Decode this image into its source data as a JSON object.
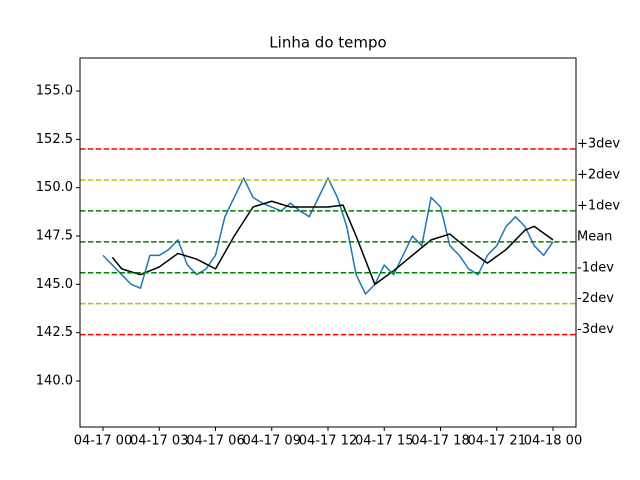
{
  "chart_data": {
    "type": "line",
    "title": "Linha do tempo",
    "xlim": [
      -1.227,
      25.227
    ],
    "xticks": [
      {
        "value": 0,
        "label": "04-17 00"
      },
      {
        "value": 3,
        "label": "04-17 03"
      },
      {
        "value": 6,
        "label": "04-17 06"
      },
      {
        "value": 9,
        "label": "04-17 09"
      },
      {
        "value": 12,
        "label": "04-17 12"
      },
      {
        "value": 15,
        "label": "04-17 15"
      },
      {
        "value": 18,
        "label": "04-17 18"
      },
      {
        "value": 21,
        "label": "04-17 21"
      },
      {
        "value": 24,
        "label": "04-18 00"
      }
    ],
    "ylim": [
      137.62,
      156.71
    ],
    "yticks": [
      {
        "value": 140,
        "label": "140.0"
      },
      {
        "value": 142.5,
        "label": "142.5"
      },
      {
        "value": 145,
        "label": "145.0"
      },
      {
        "value": 147.5,
        "label": "147.5"
      },
      {
        "value": 150,
        "label": "150.0"
      },
      {
        "value": 152.5,
        "label": "152.5"
      },
      {
        "value": 155,
        "label": "155.0"
      }
    ],
    "series": [
      {
        "color": "#1f77b4",
        "x": [
          0,
          0.5,
          1,
          1.5,
          2,
          2.5,
          3,
          3.5,
          4,
          4.5,
          5,
          5.5,
          6,
          6.5,
          7,
          7.5,
          8,
          8.5,
          9,
          9.5,
          10,
          10.5,
          11,
          11.5,
          12,
          12.5,
          13,
          13.5,
          14,
          14.5,
          15,
          15.5,
          16,
          16.5,
          17,
          17.5,
          18,
          18.5,
          19,
          19.5,
          20,
          20.5,
          21,
          21.5,
          22,
          22.5,
          23,
          23.5,
          24
        ],
        "values": [
          146.5,
          146.0,
          145.5,
          145.0,
          144.8,
          146.5,
          146.5,
          146.8,
          147.3,
          146.0,
          145.5,
          145.8,
          146.5,
          148.5,
          149.5,
          150.5,
          149.5,
          149.2,
          149.0,
          148.8,
          149.2,
          148.8,
          148.5,
          149.5,
          150.5,
          149.5,
          148.0,
          145.5,
          144.5,
          145.0,
          146.0,
          145.5,
          146.5,
          147.5,
          147.0,
          149.5,
          149.0,
          147.0,
          146.5,
          145.8,
          145.5,
          146.5,
          147.0,
          148.0,
          148.5,
          148.0,
          147.0,
          146.5,
          147.2
        ]
      },
      {
        "color": "#000000",
        "x": [
          0.5,
          1,
          2,
          3,
          4,
          5,
          6,
          7,
          8,
          9,
          10,
          11,
          12,
          12.8,
          13.5,
          14.5,
          15.5,
          16.5,
          17.5,
          18.5,
          19.5,
          20.5,
          21.5,
          22.5,
          23,
          24
        ],
        "values": [
          146.4,
          145.8,
          145.5,
          145.9,
          146.6,
          146.3,
          145.8,
          147.5,
          149.0,
          149.3,
          149.0,
          149.0,
          149.0,
          149.1,
          147.5,
          145.0,
          145.7,
          146.5,
          147.3,
          147.6,
          146.8,
          146.1,
          146.8,
          147.8,
          148.0,
          147.3
        ]
      }
    ],
    "hlines": [
      {
        "value": 152.0,
        "label": "+3dev",
        "color": "#ff0000"
      },
      {
        "value": 150.4,
        "label": "+2dev",
        "color": "#bfbf00"
      },
      {
        "value": 148.8,
        "label": "+1dev",
        "color": "#008000"
      },
      {
        "value": 147.2,
        "label": "Mean",
        "color": "#008000"
      },
      {
        "value": 145.6,
        "label": "-1dev",
        "color": "#008000"
      },
      {
        "value": 144.0,
        "label": "-2dev",
        "color": "#bfbf00"
      },
      {
        "value": 142.4,
        "label": "-3dev",
        "color": "#ff0000"
      }
    ]
  }
}
